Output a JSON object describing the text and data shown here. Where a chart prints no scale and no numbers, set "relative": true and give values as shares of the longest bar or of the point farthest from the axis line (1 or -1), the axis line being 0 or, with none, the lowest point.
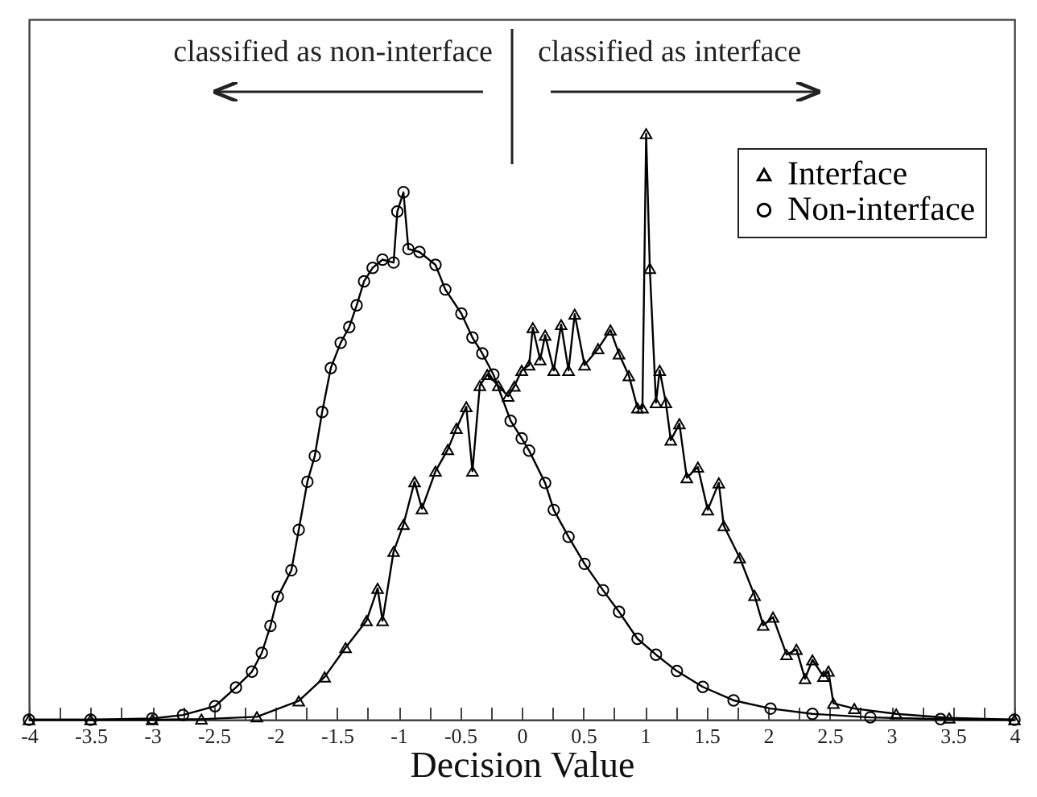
{
  "chart_data": {
    "type": "line",
    "relative": true,
    "xlabel": "Decision Value",
    "legend": "top right",
    "annotations": [
      "classified as non-interface",
      "classified as interface"
    ],
    "xlim": [
      -4,
      4
    ],
    "xticks": [
      -4,
      {
        "value": -3.75,
        "label": null
      },
      -3.5,
      {
        "value": -3.25,
        "label": null
      },
      -3,
      {
        "value": -2.75,
        "label": null
      },
      -2.5,
      {
        "value": -2.25,
        "label": null
      },
      -2,
      {
        "value": -1.75,
        "label": null
      },
      -1.5,
      {
        "value": -1.25,
        "label": null
      },
      -1,
      {
        "value": -0.75,
        "label": null
      },
      -0.5,
      {
        "value": -0.25,
        "label": null
      },
      0,
      {
        "value": 0.25,
        "label": null
      },
      0.5,
      {
        "value": 0.75,
        "label": null
      },
      1,
      {
        "value": 1.25,
        "label": null
      },
      1.5,
      {
        "value": 1.75,
        "label": null
      },
      2,
      {
        "value": 2.25,
        "label": null
      },
      2.5,
      {
        "value": 2.75,
        "label": null
      },
      3,
      {
        "value": 3.25,
        "label": null
      },
      3.5,
      {
        "value": 3.75,
        "label": null
      },
      4
    ],
    "series": [
      {
        "name": "Interface",
        "color": "#000000",
        "marker": "triangle",
        "x": [
          -4,
          -3.5,
          -3,
          -2.6,
          -2.15,
          -1.81,
          -1.6,
          -1.43,
          -1.26,
          -1.17,
          -1.13,
          -1.04,
          -0.96,
          -0.87,
          -0.81,
          -0.7,
          -0.6,
          -0.53,
          -0.45,
          -0.4,
          -0.34,
          -0.28,
          -0.19,
          -0.11,
          -0.06,
          0,
          0.06,
          0.09,
          0.15,
          0.19,
          0.26,
          0.32,
          0.38,
          0.43,
          0.51,
          0.62,
          0.72,
          0.79,
          0.87,
          0.94,
          0.98,
          1.01,
          1.04,
          1.09,
          1.12,
          1.17,
          1.21,
          1.28,
          1.34,
          1.43,
          1.51,
          1.6,
          1.64,
          1.77,
          1.89,
          1.96,
          2.04,
          2.15,
          2.23,
          2.3,
          2.36,
          2.45,
          2.49,
          2.53,
          2.7,
          3.04,
          3.47,
          4
        ],
        "values": [
          0,
          0,
          0,
          0.001,
          0.005,
          0.032,
          0.073,
          0.123,
          0.169,
          0.224,
          0.169,
          0.287,
          0.333,
          0.406,
          0.36,
          0.424,
          0.461,
          0.497,
          0.534,
          0.424,
          0.57,
          0.589,
          0.57,
          0.552,
          0.569,
          0.596,
          0.605,
          0.669,
          0.614,
          0.656,
          0.596,
          0.674,
          0.596,
          0.692,
          0.605,
          0.633,
          0.665,
          0.624,
          0.587,
          0.532,
          0.532,
          1,
          0.77,
          0.541,
          0.596,
          0.541,
          0.477,
          0.505,
          0.413,
          0.431,
          0.358,
          0.404,
          0.331,
          0.276,
          0.212,
          0.161,
          0.175,
          0.111,
          0.12,
          0.07,
          0.102,
          0.074,
          0.083,
          0.028,
          0.019,
          0.01,
          0.003,
          0
        ]
      },
      {
        "name": "Non-interface",
        "color": "#000000",
        "marker": "circle",
        "x": [
          -4,
          -3.5,
          -3,
          -2.75,
          -2.49,
          -2.32,
          -2.19,
          -2.11,
          -2.04,
          -1.98,
          -1.87,
          -1.81,
          -1.74,
          -1.68,
          -1.62,
          -1.55,
          -1.47,
          -1.4,
          -1.34,
          -1.28,
          -1.21,
          -1.13,
          -1.04,
          -1.01,
          -0.96,
          -0.92,
          -0.83,
          -0.7,
          -0.62,
          -0.49,
          -0.4,
          -0.32,
          -0.23,
          -0.09,
          0,
          0.06,
          0.19,
          0.26,
          0.38,
          0.51,
          0.66,
          0.79,
          0.94,
          1.09,
          1.26,
          1.47,
          1.72,
          2.02,
          2.36,
          2.83,
          3.4,
          4
        ],
        "values": [
          0,
          0,
          0.002,
          0.008,
          0.023,
          0.055,
          0.082,
          0.114,
          0.16,
          0.21,
          0.255,
          0.324,
          0.406,
          0.45,
          0.525,
          0.6,
          0.643,
          0.67,
          0.707,
          0.748,
          0.771,
          0.785,
          0.78,
          0.867,
          0.9,
          0.803,
          0.798,
          0.776,
          0.734,
          0.693,
          0.652,
          0.625,
          0.589,
          0.51,
          0.48,
          0.459,
          0.404,
          0.358,
          0.312,
          0.266,
          0.221,
          0.184,
          0.138,
          0.111,
          0.083,
          0.056,
          0.033,
          0.019,
          0.01,
          0.004,
          0.001,
          0
        ]
      }
    ]
  }
}
